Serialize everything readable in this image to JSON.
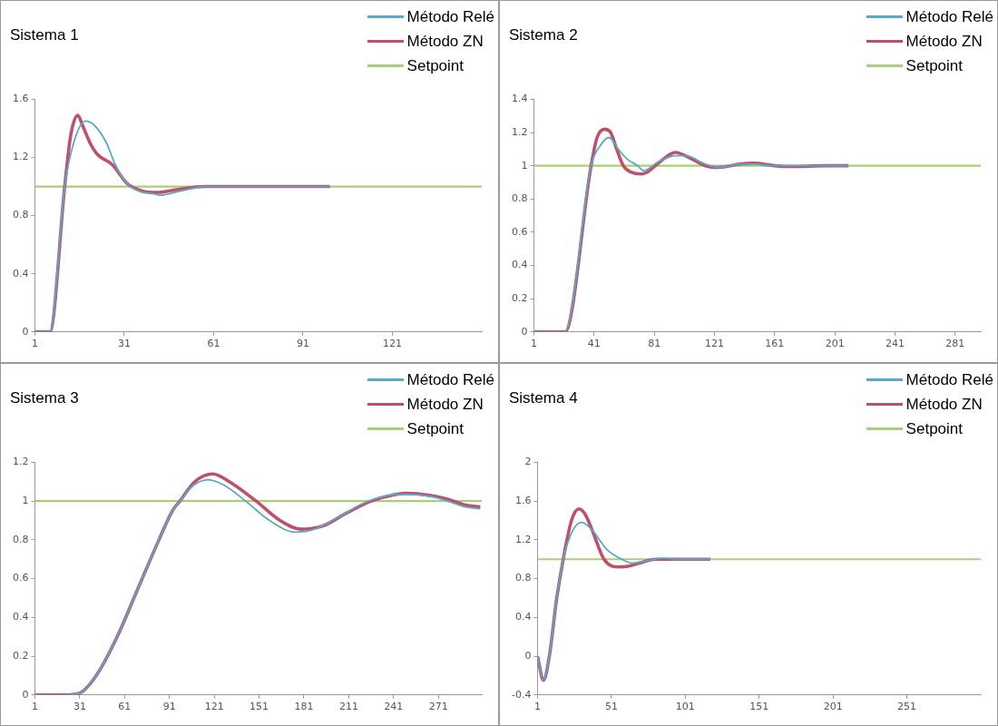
{
  "chart_data": [
    {
      "type": "line",
      "title": "Sistema 1",
      "legend": "top right",
      "marker": "none",
      "xlim": [
        1,
        151
      ],
      "xticks": [
        1,
        31,
        61,
        91,
        121
      ],
      "ylim": [
        0,
        1.6
      ],
      "yticks": [
        0,
        0.4,
        0.8,
        1.2,
        1.6
      ],
      "series": [
        {
          "name": "Método Relé",
          "color": "#5aa9c8",
          "x": [
            1,
            6,
            11,
            14,
            18,
            21,
            25,
            28,
            32,
            37,
            41,
            43,
            50,
            58,
            70,
            85,
            100
          ],
          "values": [
            0,
            0,
            1.0,
            1.3,
            1.45,
            1.42,
            1.3,
            1.15,
            1.02,
            0.96,
            0.95,
            0.94,
            0.97,
            1.0,
            1.0,
            1.0,
            1.0
          ]
        },
        {
          "name": "Método ZN",
          "color": "#c0506a",
          "x": [
            1,
            6,
            11,
            13,
            15.4,
            17,
            19.5,
            22,
            27,
            32,
            37,
            42,
            49,
            58,
            70,
            85,
            100
          ],
          "values": [
            0,
            0,
            1.0,
            1.35,
            1.49,
            1.42,
            1.3,
            1.22,
            1.15,
            1.02,
            0.97,
            0.96,
            0.98,
            1.0,
            1.0,
            1.0,
            1.0
          ]
        },
        {
          "name": "Setpoint",
          "color": "#a9cf7a",
          "x": [
            1,
            151
          ],
          "values": [
            1,
            1
          ]
        }
      ]
    },
    {
      "type": "line",
      "title": "Sistema 2",
      "legend": "top right",
      "marker": "none",
      "xlim": [
        1,
        298
      ],
      "xticks": [
        1,
        41,
        81,
        121,
        161,
        201,
        241,
        281
      ],
      "ylim": [
        0,
        1.4
      ],
      "yticks": [
        0,
        0.2,
        0.4,
        0.6,
        0.8,
        1,
        1.2,
        1.4
      ],
      "series": [
        {
          "name": "Método Relé",
          "color": "#5aa9c8",
          "x": [
            1,
            21.6,
            39,
            45,
            51,
            57,
            63,
            70,
            74,
            83,
            95,
            102,
            115,
            124,
            138,
            147,
            161,
            175,
            195,
            210
          ],
          "values": [
            0,
            0,
            1.0,
            1.12,
            1.17,
            1.1,
            1.04,
            1.0,
            0.97,
            1.02,
            1.06,
            1.06,
            1.01,
            0.99,
            1.01,
            1.01,
            1.0,
            1.0,
            1.0,
            1.0
          ]
        },
        {
          "name": "Método ZN",
          "color": "#c0506a",
          "x": [
            1,
            21.6,
            39,
            43,
            48,
            52,
            56,
            60.4,
            66,
            72,
            76,
            85.6,
            95,
            104,
            115,
            124,
            138,
            147,
            161,
            172,
            195,
            210
          ],
          "values": [
            0,
            0,
            1.0,
            1.17,
            1.22,
            1.2,
            1.1,
            1.0,
            0.96,
            0.95,
            0.96,
            1.03,
            1.08,
            1.05,
            1.0,
            0.99,
            1.01,
            1.015,
            1.0,
            0.995,
            1.0,
            1.0
          ]
        },
        {
          "name": "Setpoint",
          "color": "#a9cf7a",
          "x": [
            1,
            298
          ],
          "values": [
            1,
            1
          ]
        }
      ]
    },
    {
      "type": "line",
      "title": "Sistema 3",
      "legend": "top right",
      "marker": "none",
      "xlim": [
        1,
        300
      ],
      "xticks": [
        1,
        31,
        61,
        91,
        121,
        151,
        181,
        211,
        241,
        271
      ],
      "ylim": [
        0,
        1.2
      ],
      "yticks": [
        0,
        0.2,
        0.4,
        0.6,
        0.8,
        1,
        1.2
      ],
      "series": [
        {
          "name": "Método Relé",
          "color": "#5aa9c8",
          "x": [
            1,
            20,
            31,
            42,
            56,
            70,
            84,
            93,
            98,
            107,
            117,
            128,
            142,
            158,
            175,
            186,
            205,
            221,
            238,
            249,
            268,
            277,
            289,
            299
          ],
          "values": [
            0,
            0,
            0.01,
            0.1,
            0.3,
            0.55,
            0.8,
            0.95,
            1.0,
            1.08,
            1.11,
            1.08,
            1.0,
            0.9,
            0.84,
            0.85,
            0.92,
            0.99,
            1.03,
            1.035,
            1.02,
            1.0,
            0.97,
            0.96
          ]
        },
        {
          "name": "Método ZN",
          "color": "#c0506a",
          "x": [
            1,
            20,
            31,
            42,
            56,
            70,
            84,
            93,
            98,
            108,
            120,
            131,
            149,
            165,
            179,
            193,
            210,
            226,
            240,
            249,
            265,
            277,
            289,
            299
          ],
          "values": [
            0,
            0,
            0.01,
            0.1,
            0.3,
            0.55,
            0.8,
            0.95,
            1.0,
            1.1,
            1.14,
            1.1,
            1.0,
            0.9,
            0.855,
            0.87,
            0.94,
            1.0,
            1.03,
            1.04,
            1.03,
            1.01,
            0.98,
            0.97
          ]
        },
        {
          "name": "Setpoint",
          "color": "#a9cf7a",
          "x": [
            1,
            300
          ],
          "values": [
            1,
            1
          ]
        }
      ]
    },
    {
      "type": "line",
      "title": "Sistema 4",
      "legend": "top right",
      "marker": "none",
      "xlim": [
        1,
        301
      ],
      "xticks": [
        1,
        51,
        101,
        151,
        201,
        251
      ],
      "ylim": [
        -0.4,
        2
      ],
      "yticks": [
        -0.4,
        0,
        0.4,
        0.8,
        1.2,
        1.6,
        2
      ],
      "series": [
        {
          "name": "Método Relé",
          "color": "#5aa9c8",
          "x": [
            1,
            5,
            9,
            14,
            18.4,
            25,
            31,
            38,
            48,
            58,
            65,
            74,
            86,
            95,
            118
          ],
          "values": [
            0,
            -0.25,
            0,
            0.6,
            1.0,
            1.3,
            1.38,
            1.3,
            1.1,
            1.0,
            0.96,
            0.98,
            1.01,
            1.0,
            1.0
          ]
        },
        {
          "name": "Método ZN",
          "color": "#c0506a",
          "x": [
            1,
            5,
            9,
            14,
            18.4,
            24,
            29,
            33,
            38,
            46,
            56,
            63,
            72,
            81,
            100,
            118
          ],
          "values": [
            0,
            -0.25,
            0,
            0.6,
            1.0,
            1.4,
            1.52,
            1.47,
            1.3,
            1.0,
            0.92,
            0.93,
            0.97,
            1.0,
            1.0,
            1.0
          ]
        },
        {
          "name": "Setpoint",
          "color": "#a9cf7a",
          "x": [
            1,
            301
          ],
          "values": [
            1,
            1
          ]
        }
      ]
    }
  ]
}
